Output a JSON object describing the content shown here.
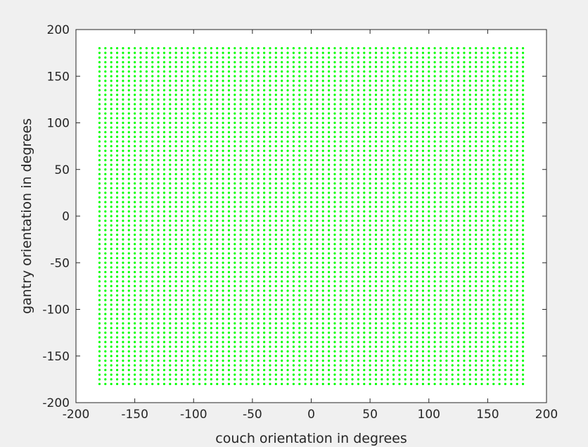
{
  "chart_data": {
    "type": "scatter",
    "xlabel": "couch orientation in degrees",
    "ylabel": "gantry orientation in degrees",
    "xlim": [
      -200,
      200
    ],
    "ylim": [
      -200,
      200
    ],
    "xticks": [
      -200,
      -150,
      -100,
      -50,
      0,
      50,
      100,
      150,
      200
    ],
    "yticks": [
      -200,
      -150,
      -100,
      -50,
      0,
      50,
      100,
      150,
      200
    ],
    "xtick_labels": [
      "-200",
      "-150",
      "-100",
      "-50",
      "0",
      "50",
      "100",
      "150",
      "200"
    ],
    "ytick_labels": [
      "-200",
      "-150",
      "-100",
      "-50",
      "0",
      "50",
      "100",
      "150",
      "200"
    ],
    "grid": false,
    "marker_color": "#00ff00",
    "series": [
      {
        "x": {
          "start": -180,
          "stop": 180,
          "step": 5
        },
        "y": {
          "start": -180,
          "stop": 180,
          "step": 5
        },
        "layout": "full grid of every x paired with every y"
      }
    ]
  }
}
